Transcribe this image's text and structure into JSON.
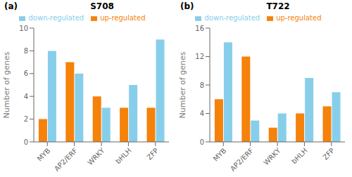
{
  "chart_data": [
    {
      "type": "bar",
      "title": "S708",
      "annotations": [
        "(a)"
      ],
      "ylabel": "Number of genes",
      "categories": [
        "MYB",
        "AP2/ERF",
        "WRKY",
        "bHLH",
        "ZFP"
      ],
      "series": [
        {
          "name": "up-regulated",
          "color": "#F5820A",
          "values": [
            2,
            7,
            4,
            3,
            3
          ]
        },
        {
          "name": "down-regulated",
          "color": "#87CEEB",
          "values": [
            8,
            6,
            3,
            5,
            9
          ]
        }
      ],
      "ylim": [
        0,
        10
      ],
      "yticks": [
        0,
        2,
        4,
        6,
        8,
        10
      ],
      "grid": false,
      "legend": "top"
    },
    {
      "type": "bar",
      "title": "T722",
      "annotations": [
        "(b)"
      ],
      "ylabel": "Number of genes",
      "categories": [
        "MYB",
        "AP2/ERF",
        "WRKY",
        "bHLH",
        "ZFP"
      ],
      "series": [
        {
          "name": "up-regulated",
          "color": "#F5820A",
          "values": [
            6,
            12,
            2,
            4,
            5
          ]
        },
        {
          "name": "down-regulated",
          "color": "#87CEEB",
          "values": [
            14,
            3,
            4,
            9,
            7
          ]
        }
      ],
      "ylim": [
        0,
        16
      ],
      "yticks": [
        0,
        4,
        8,
        12,
        16
      ],
      "grid": false,
      "legend": "top"
    }
  ]
}
